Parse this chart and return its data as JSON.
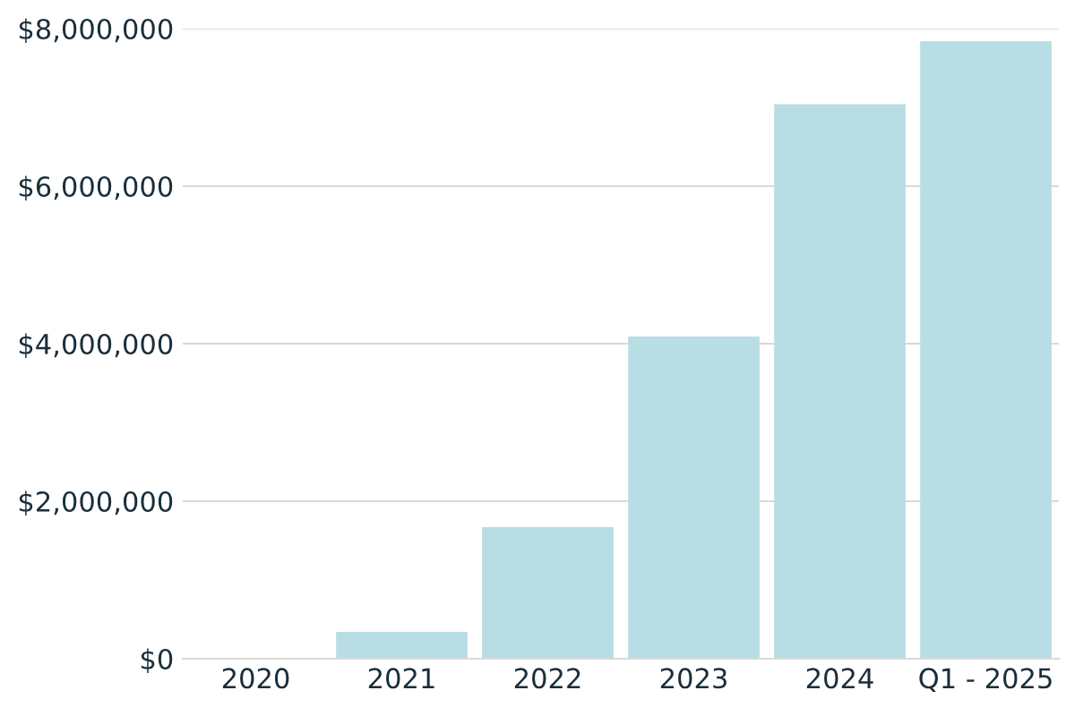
{
  "chart_data": {
    "type": "bar",
    "categories": [
      "2020",
      "2021",
      "2022",
      "2023",
      "2024",
      "Q1 - 2025"
    ],
    "values": [
      0,
      340000,
      1670000,
      4090000,
      7040000,
      7840000
    ],
    "color": "#b8dde4",
    "ylim": [
      0,
      8000000
    ],
    "yticks": [
      {
        "value": 0,
        "label": "$0"
      },
      {
        "value": 2000000,
        "label": "$2,000,000"
      },
      {
        "value": 4000000,
        "label": "$4,000,000"
      },
      {
        "value": 6000000,
        "label": "$6,000,000"
      },
      {
        "value": 8000000,
        "label": "$8,000,000"
      }
    ],
    "grid": "y"
  }
}
